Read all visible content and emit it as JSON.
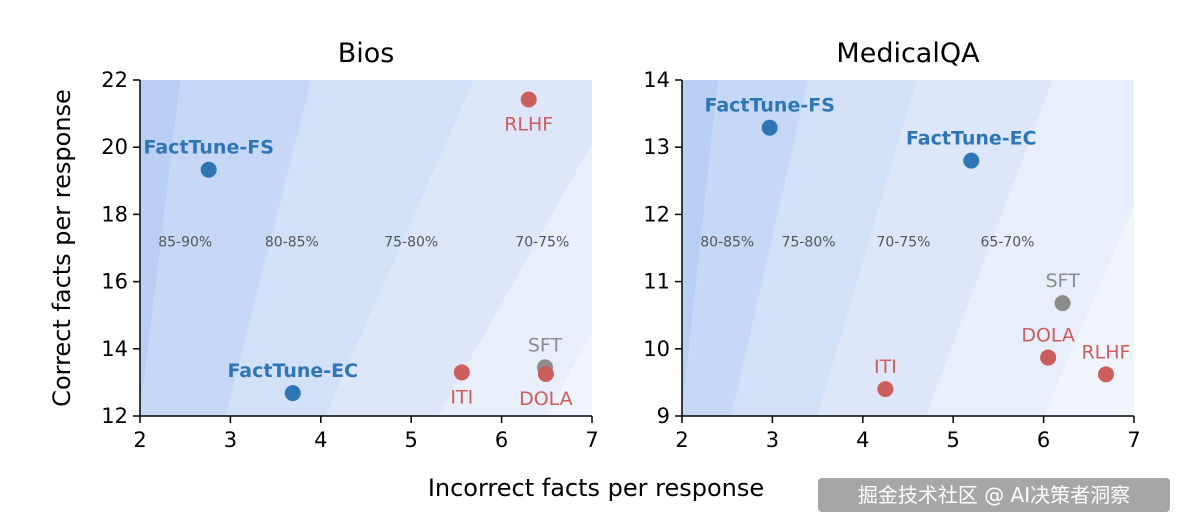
{
  "figure": {
    "xlabel": "Incorrect facts per response",
    "ylabel": "Correct facts per response",
    "watermark": "掘金技术社区 @ AI决策者洞察"
  },
  "colors": {
    "factune": "#2e75b6",
    "baseline": "#cd5c5c",
    "sft": "#8c8c8c"
  },
  "chart_data": [
    {
      "type": "scatter",
      "title": "Bios",
      "xlim": [
        2,
        7
      ],
      "ylim": [
        12,
        22
      ],
      "xticks": [
        2,
        3,
        4,
        5,
        6,
        7
      ],
      "yticks": [
        12,
        14,
        16,
        18,
        20,
        22
      ],
      "band_labels": [
        {
          "text": "85-90%",
          "x": 2.5,
          "y": 17.2
        },
        {
          "text": "80-85%",
          "x": 3.68,
          "y": 17.2
        },
        {
          "text": "75-80%",
          "x": 5.0,
          "y": 17.2
        },
        {
          "text": "70-75%",
          "x": 6.45,
          "y": 17.2
        }
      ],
      "points": [
        {
          "name": "FactTune-FS",
          "x": 2.76,
          "y": 19.33,
          "group": "factune",
          "label_pos": "above"
        },
        {
          "name": "FactTune-EC",
          "x": 3.69,
          "y": 12.68,
          "group": "factune",
          "label_pos": "above"
        },
        {
          "name": "RLHF",
          "x": 6.3,
          "y": 21.42,
          "group": "baseline",
          "label_pos": "below"
        },
        {
          "name": "ITI",
          "x": 5.56,
          "y": 13.3,
          "group": "baseline",
          "label_pos": "below"
        },
        {
          "name": "SFT",
          "x": 6.48,
          "y": 13.45,
          "group": "sft",
          "label_pos": "above"
        },
        {
          "name": "DOLA",
          "x": 6.49,
          "y": 13.25,
          "group": "baseline",
          "label_pos": "below"
        }
      ]
    },
    {
      "type": "scatter",
      "title": "MedicalQA",
      "xlim": [
        2,
        7
      ],
      "ylim": [
        9,
        14
      ],
      "xticks": [
        2,
        3,
        4,
        5,
        6,
        7
      ],
      "yticks": [
        9,
        10,
        11,
        12,
        13,
        14
      ],
      "band_labels": [
        {
          "text": "80-85%",
          "x": 2.5,
          "y": 11.6
        },
        {
          "text": "75-80%",
          "x": 3.4,
          "y": 11.6
        },
        {
          "text": "70-75%",
          "x": 4.45,
          "y": 11.6
        },
        {
          "text": "65-70%",
          "x": 5.6,
          "y": 11.6
        }
      ],
      "points": [
        {
          "name": "FactTune-FS",
          "x": 2.97,
          "y": 13.29,
          "group": "factune",
          "label_pos": "above"
        },
        {
          "name": "FactTune-EC",
          "x": 5.2,
          "y": 12.8,
          "group": "factune",
          "label_pos": "above"
        },
        {
          "name": "SFT",
          "x": 6.21,
          "y": 10.68,
          "group": "sft",
          "label_pos": "above"
        },
        {
          "name": "DOLA",
          "x": 6.05,
          "y": 9.87,
          "group": "baseline",
          "label_pos": "above"
        },
        {
          "name": "RLHF",
          "x": 6.69,
          "y": 9.62,
          "group": "baseline",
          "label_pos": "above"
        },
        {
          "name": "ITI",
          "x": 4.25,
          "y": 9.4,
          "group": "baseline",
          "label_pos": "above"
        }
      ]
    }
  ]
}
